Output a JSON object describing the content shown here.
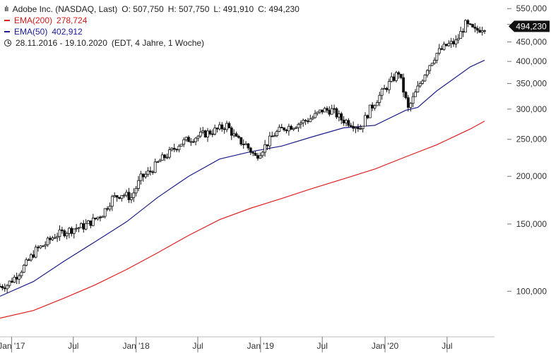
{
  "header": {
    "title": "Adobe Inc. (NASDAQ, Last)",
    "open": "O: 507,750",
    "high": "H: 507,750",
    "low": "L: 491,910",
    "close": "C: 494,230",
    "ema200_label": "EMA(200)",
    "ema200_value": "278,724",
    "ema50_label": "EMA(50)",
    "ema50_value": "402,912",
    "range": "28.11.2016 - 19.10.2020",
    "range_note": "(EDT, 4 Jahre, 1 Woche)"
  },
  "colors": {
    "candle": "#111111",
    "ema200": "#e02020",
    "ema50": "#1c1c8c",
    "last_label_bg": "#111111"
  },
  "chart_data": {
    "type": "candlestick",
    "scale": "log",
    "ylim": [
      82,
      560
    ],
    "last_price_label": "494,230",
    "yticks": [
      {
        "value": 100,
        "label": "100,000"
      },
      {
        "value": 150,
        "label": "150,000"
      },
      {
        "value": 200,
        "label": "200,000"
      },
      {
        "value": 250,
        "label": "250,000"
      },
      {
        "value": 300,
        "label": "300,000"
      },
      {
        "value": 350,
        "label": "350,000"
      },
      {
        "value": 400,
        "label": "400,000"
      },
      {
        "value": 450,
        "label": "450,000"
      },
      {
        "value": 500,
        "label": "500,000"
      },
      {
        "value": 550,
        "label": "550,000"
      }
    ],
    "xlim": [
      "2016-11-28",
      "2020-10-19"
    ],
    "xticks": [
      {
        "date": "2017-01-01",
        "label": "Jan '17"
      },
      {
        "date": "2017-07-01",
        "label": "Jul"
      },
      {
        "date": "2018-01-01",
        "label": "Jan '18"
      },
      {
        "date": "2018-07-01",
        "label": "Jul"
      },
      {
        "date": "2019-01-01",
        "label": "Jan '19"
      },
      {
        "date": "2019-07-01",
        "label": "Jul"
      },
      {
        "date": "2020-01-01",
        "label": "Jan '20"
      },
      {
        "date": "2020-07-01",
        "label": "Jul"
      }
    ],
    "price": [
      [
        "2016-11-28",
        103
      ],
      [
        "2016-12-19",
        104
      ],
      [
        "2017-01-16",
        110
      ],
      [
        "2017-02-13",
        118
      ],
      [
        "2017-03-13",
        128
      ],
      [
        "2017-04-10",
        133
      ],
      [
        "2017-05-08",
        140
      ],
      [
        "2017-06-05",
        143
      ],
      [
        "2017-07-03",
        146
      ],
      [
        "2017-07-31",
        148
      ],
      [
        "2017-08-28",
        153
      ],
      [
        "2017-09-25",
        160
      ],
      [
        "2017-10-23",
        175
      ],
      [
        "2017-11-20",
        180
      ],
      [
        "2017-12-18",
        176
      ],
      [
        "2018-01-15",
        198
      ],
      [
        "2018-02-12",
        206
      ],
      [
        "2018-03-12",
        220
      ],
      [
        "2018-04-09",
        230
      ],
      [
        "2018-05-07",
        243
      ],
      [
        "2018-06-04",
        250
      ],
      [
        "2018-07-02",
        255
      ],
      [
        "2018-07-30",
        260
      ],
      [
        "2018-08-27",
        265
      ],
      [
        "2018-09-24",
        272
      ],
      [
        "2018-10-22",
        250
      ],
      [
        "2018-11-19",
        242
      ],
      [
        "2018-12-17",
        225
      ],
      [
        "2019-01-14",
        240
      ],
      [
        "2019-02-11",
        258
      ],
      [
        "2019-03-11",
        268
      ],
      [
        "2019-04-08",
        272
      ],
      [
        "2019-05-06",
        278
      ],
      [
        "2019-06-03",
        285
      ],
      [
        "2019-07-01",
        298
      ],
      [
        "2019-07-29",
        298
      ],
      [
        "2019-08-26",
        282
      ],
      [
        "2019-09-23",
        276
      ],
      [
        "2019-10-21",
        268
      ],
      [
        "2019-11-18",
        300
      ],
      [
        "2019-12-16",
        325
      ],
      [
        "2020-01-13",
        350
      ],
      [
        "2020-02-10",
        375
      ],
      [
        "2020-03-09",
        300
      ],
      [
        "2020-04-06",
        340
      ],
      [
        "2020-05-04",
        385
      ],
      [
        "2020-06-01",
        420
      ],
      [
        "2020-06-29",
        440
      ],
      [
        "2020-07-27",
        450
      ],
      [
        "2020-08-24",
        500
      ],
      [
        "2020-09-21",
        480
      ],
      [
        "2020-10-19",
        494
      ]
    ],
    "ema200": [
      [
        "2016-11-28",
        85
      ],
      [
        "2017-03-06",
        89
      ],
      [
        "2017-06-05",
        96
      ],
      [
        "2017-09-04",
        104
      ],
      [
        "2017-12-04",
        114
      ],
      [
        "2018-03-05",
        126
      ],
      [
        "2018-06-04",
        140
      ],
      [
        "2018-09-03",
        154
      ],
      [
        "2018-12-03",
        165
      ],
      [
        "2019-03-04",
        175
      ],
      [
        "2019-06-03",
        186
      ],
      [
        "2019-09-02",
        197
      ],
      [
        "2019-12-02",
        209
      ],
      [
        "2020-03-02",
        225
      ],
      [
        "2020-06-01",
        242
      ],
      [
        "2020-09-07",
        266
      ],
      [
        "2020-10-19",
        279
      ]
    ],
    "ema50": [
      [
        "2016-11-28",
        97
      ],
      [
        "2017-03-06",
        106
      ],
      [
        "2017-06-05",
        120
      ],
      [
        "2017-09-04",
        135
      ],
      [
        "2017-12-04",
        152
      ],
      [
        "2018-03-05",
        176
      ],
      [
        "2018-06-04",
        200
      ],
      [
        "2018-09-03",
        222
      ],
      [
        "2018-12-03",
        232
      ],
      [
        "2019-03-04",
        240
      ],
      [
        "2019-06-03",
        254
      ],
      [
        "2019-09-02",
        268
      ],
      [
        "2019-12-02",
        272
      ],
      [
        "2020-03-02",
        298
      ],
      [
        "2020-04-06",
        303
      ],
      [
        "2020-06-01",
        335
      ],
      [
        "2020-09-07",
        387
      ],
      [
        "2020-10-19",
        403
      ]
    ]
  }
}
